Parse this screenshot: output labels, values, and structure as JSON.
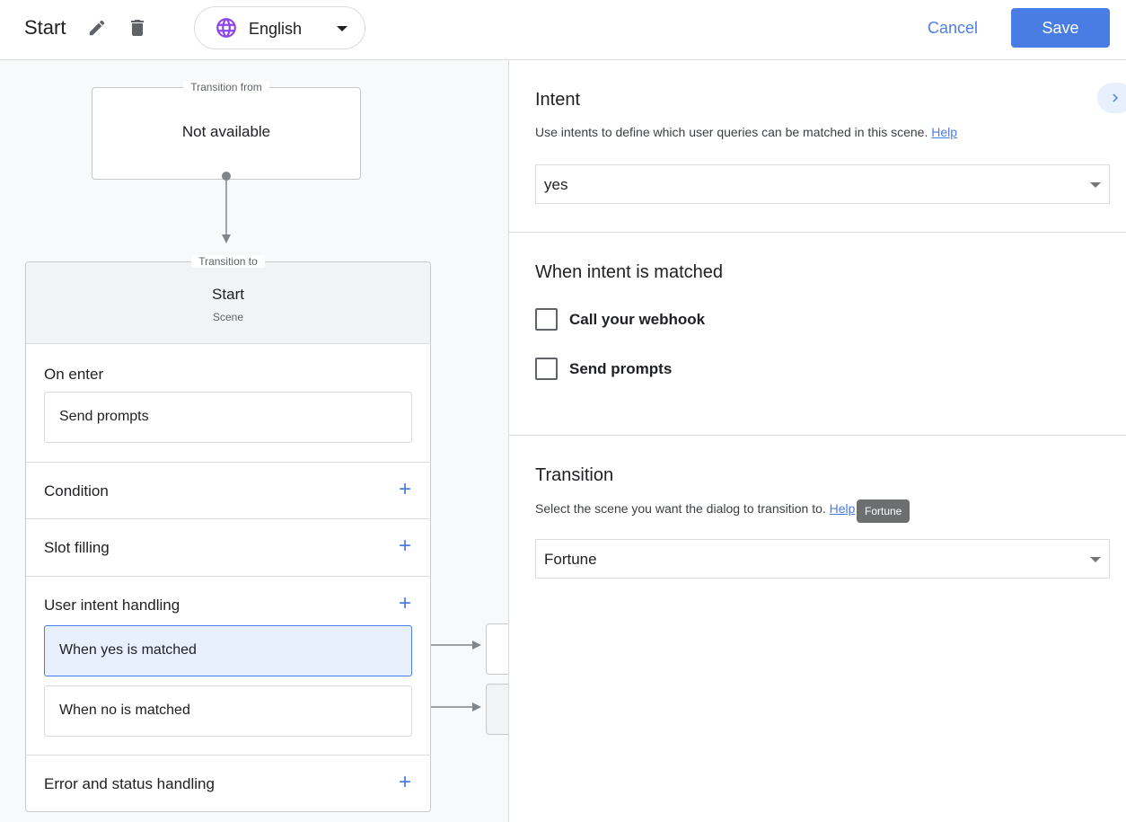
{
  "header": {
    "title": "Start",
    "language": "English",
    "cancel_label": "Cancel",
    "save_label": "Save"
  },
  "flow": {
    "transition_from_label": "Transition from",
    "transition_from_value": "Not available",
    "transition_to_label": "Transition to",
    "scene_name": "Start",
    "scene_type": "Scene",
    "on_enter": {
      "label": "On enter",
      "item": "Send prompts"
    },
    "condition": "Condition",
    "slot_filling": "Slot filling",
    "user_intent_handling": {
      "label": "User intent handling",
      "items": [
        "When yes is matched",
        "When no is matched"
      ]
    },
    "error_status": "Error and status handling"
  },
  "panel": {
    "intent": {
      "title": "Intent",
      "description": "Use intents to define which user queries can be matched in this scene.",
      "help": "Help",
      "value": "yes"
    },
    "matched": {
      "title": "When intent is matched",
      "options": [
        {
          "label": "Call your webhook",
          "checked": false
        },
        {
          "label": "Send prompts",
          "checked": false
        }
      ]
    },
    "transition": {
      "title": "Transition",
      "description": "Select the scene you want the dialog to transition to.",
      "help": "Help",
      "value": "Fortune",
      "tooltip": "Fortune"
    }
  },
  "colors": {
    "accent": "#4a7de4",
    "selected_bg": "#e8f0fe",
    "globe": "#8e44ec"
  }
}
